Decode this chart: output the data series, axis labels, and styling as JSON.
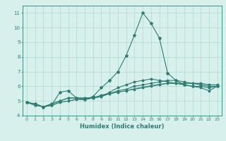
{
  "xlabel": "Humidex (Indice chaleur)",
  "x": [
    0,
    1,
    2,
    3,
    4,
    5,
    6,
    7,
    8,
    9,
    10,
    11,
    12,
    13,
    14,
    15,
    16,
    17,
    18,
    19,
    20,
    21,
    22,
    23
  ],
  "line1": [
    4.9,
    4.7,
    4.6,
    4.7,
    5.6,
    5.7,
    5.2,
    5.1,
    5.3,
    5.9,
    6.4,
    7.0,
    8.1,
    9.5,
    11.0,
    10.3,
    9.3,
    6.9,
    6.4,
    6.1,
    6.0,
    6.0,
    5.9,
    6.0
  ],
  "line2": [
    4.9,
    4.8,
    4.6,
    4.7,
    4.9,
    5.0,
    5.1,
    5.1,
    5.2,
    5.4,
    5.5,
    5.6,
    5.7,
    5.8,
    5.9,
    6.0,
    6.1,
    6.2,
    6.2,
    6.2,
    6.2,
    6.2,
    6.1,
    6.1
  ],
  "line3": [
    4.9,
    4.8,
    4.6,
    4.8,
    5.0,
    5.2,
    5.2,
    5.2,
    5.2,
    5.3,
    5.5,
    5.7,
    5.8,
    6.0,
    6.1,
    6.2,
    6.3,
    6.4,
    6.4,
    6.3,
    6.2,
    6.1,
    6.0,
    6.0
  ],
  "line4": [
    4.9,
    4.8,
    4.6,
    4.8,
    5.0,
    5.2,
    5.2,
    5.2,
    5.2,
    5.3,
    5.6,
    5.9,
    6.1,
    6.3,
    6.4,
    6.5,
    6.4,
    6.3,
    6.2,
    6.1,
    6.0,
    5.9,
    5.7,
    6.0
  ],
  "line5": [
    4.9,
    4.8,
    4.6,
    4.7,
    4.9,
    5.0,
    5.1,
    5.1,
    5.2,
    5.4,
    5.5,
    5.6,
    5.7,
    5.85,
    5.95,
    6.05,
    6.15,
    6.2,
    6.2,
    6.2,
    6.2,
    6.2,
    6.1,
    6.1
  ],
  "line_color": "#2d7d72",
  "bg_color": "#d8f0ec",
  "grid_color": "#b0d8d0",
  "ylim": [
    4,
    11.5
  ],
  "yticks": [
    4,
    5,
    6,
    7,
    8,
    9,
    10,
    11
  ],
  "xlim": [
    -0.5,
    23.5
  ]
}
